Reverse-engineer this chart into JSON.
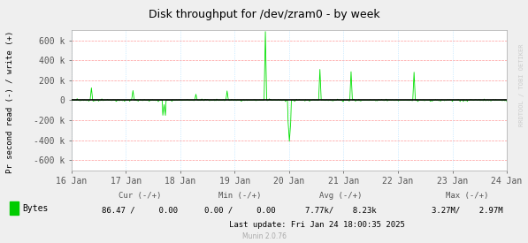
{
  "title": "Disk throughput for /dev/zram0 - by week",
  "ylabel": "Pr second read (-) / write (+)",
  "xlabel_dates": [
    "16 Jan",
    "17 Jan",
    "18 Jan",
    "19 Jan",
    "20 Jan",
    "21 Jan",
    "22 Jan",
    "23 Jan",
    "24 Jan"
  ],
  "ylim": [
    -700000,
    700000
  ],
  "yticks": [
    -600000,
    -400000,
    -200000,
    0,
    200000,
    400000,
    600000
  ],
  "ytick_labels": [
    "-600 k",
    "-400 k",
    "-200 k",
    "0",
    "200 k",
    "400 k",
    "600 k"
  ],
  "bg_color": "#efefef",
  "plot_bg_color": "#ffffff",
  "grid_color": "#ff9999",
  "line_color": "#00e000",
  "zero_line_color": "#000000",
  "legend_square_color": "#00cc00",
  "watermark_color": "#cccccc",
  "legend_text": "Bytes",
  "legend_cur": "Cur (-/+)",
  "legend_cur_val": "86.47 /     0.00",
  "legend_min": "Min (-/+)",
  "legend_min_val": "0.00 /     0.00",
  "legend_avg": "Avg (-/+)",
  "legend_avg_val": "7.77k/    8.23k",
  "legend_max": "Max (-/+)",
  "legend_max_val": "3.27M/    2.97M",
  "last_update": "Last update: Fri Jan 24 18:00:35 2025",
  "munin_version": "Munin 2.0.76",
  "rrdtool_text": "RRDTOOL / TOBI OETIKER"
}
